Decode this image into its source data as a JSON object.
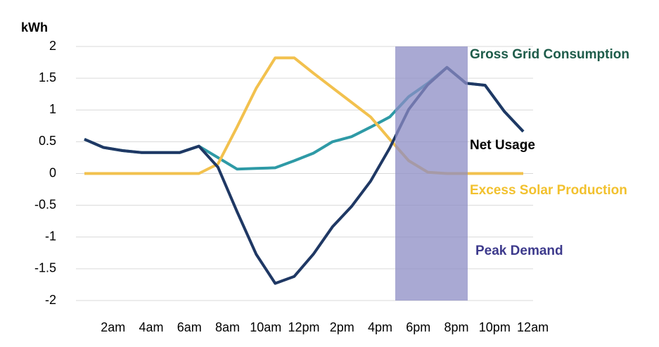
{
  "chart_data": {
    "type": "line",
    "y_label": "kWh",
    "categories": [
      null,
      "2am",
      null,
      "4am",
      null,
      "6am",
      null,
      "8am",
      null,
      "10am",
      null,
      "12pm",
      null,
      "2pm",
      null,
      "4pm",
      null,
      "6pm",
      null,
      "8pm",
      null,
      "10pm",
      null,
      "12am"
    ],
    "ylim": [
      -2,
      2
    ],
    "yticks": [
      -2,
      -1.5,
      -1,
      -0.5,
      0,
      0.5,
      1,
      1.5,
      2
    ],
    "grid": true,
    "series": [
      {
        "name": "Gross Grid Consumption",
        "color": "#2e9aa6",
        "values": [
          0.54,
          0.41,
          0.36,
          0.33,
          0.33,
          0.33,
          0.43,
          0.25,
          0.07,
          0.08,
          0.09,
          0.2,
          0.32,
          0.5,
          0.58,
          0.73,
          0.89,
          1.21,
          1.42,
          1.67,
          1.42,
          1.39,
          0.98,
          0.66
        ]
      },
      {
        "name": "Excess Solar Production",
        "color": "#f2c14e",
        "values": [
          0,
          0,
          0,
          0,
          0,
          0,
          0,
          0.15,
          0.73,
          1.34,
          1.82,
          1.82,
          1.58,
          1.35,
          1.12,
          0.89,
          0.54,
          0.2,
          0.02,
          0,
          0,
          0,
          0,
          0
        ]
      },
      {
        "name": "Net Usage",
        "color": "#1f3864",
        "values": [
          0.54,
          0.41,
          0.36,
          0.33,
          0.33,
          0.33,
          0.43,
          0.1,
          -0.6,
          -1.27,
          -1.73,
          -1.62,
          -1.27,
          -0.84,
          -0.52,
          -0.12,
          0.4,
          1.01,
          1.4,
          1.67,
          1.42,
          1.39,
          0.98,
          0.66
        ]
      }
    ],
    "annotations": [
      {
        "text": "Gross Grid Consumption",
        "color": "#1e5c4a"
      },
      {
        "text": "Net Usage",
        "color": "#000000"
      },
      {
        "text": "Excess Solar Production",
        "color": "#f2c12e"
      },
      {
        "text": "Peak Demand",
        "color": "#3d3a8c"
      }
    ],
    "highlight_color": "#8c8cc4"
  }
}
